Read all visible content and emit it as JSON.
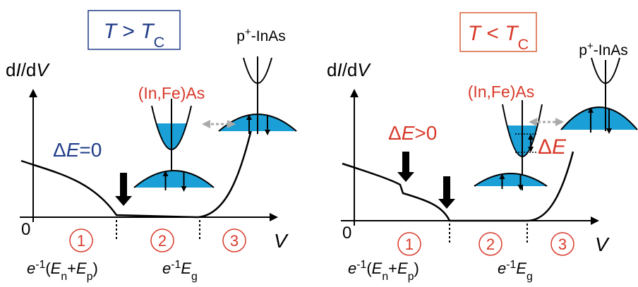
{
  "panels": [
    {
      "condition": [
        "T",
        " > ",
        "T",
        "C"
      ],
      "y_axis": [
        "d",
        "I",
        "/d",
        "V"
      ],
      "x_axis": "V",
      "origin": "0",
      "material": "(In,Fe)As",
      "electrode": [
        "p",
        "+",
        "-InAs"
      ],
      "gap_note": [
        "Δ",
        "E",
        "=0"
      ],
      "regions": [
        "1",
        "2",
        "3"
      ],
      "threshold_low": [
        "e",
        "-1",
        "(",
        "E",
        "n",
        "+",
        "E",
        "p",
        ")"
      ],
      "threshold_high": [
        "e",
        "-1",
        "E",
        "g"
      ]
    },
    {
      "condition": [
        "T",
        " < ",
        "T",
        "C"
      ],
      "y_axis": [
        "d",
        "I",
        "/d",
        "V"
      ],
      "x_axis": "V",
      "origin": "0",
      "material": "(In,Fe)As",
      "electrode": [
        "p",
        "+",
        "-InAs"
      ],
      "gap_note": [
        "Δ",
        "E",
        ">0"
      ],
      "split_label": [
        "Δ",
        "E"
      ],
      "regions": [
        "1",
        "2",
        "3"
      ],
      "threshold_low": [
        "e",
        "-1",
        "(",
        "E",
        "n",
        "+",
        "E",
        "p",
        ")"
      ],
      "threshold_high": [
        "e",
        "-1",
        "E",
        "g"
      ]
    }
  ]
}
